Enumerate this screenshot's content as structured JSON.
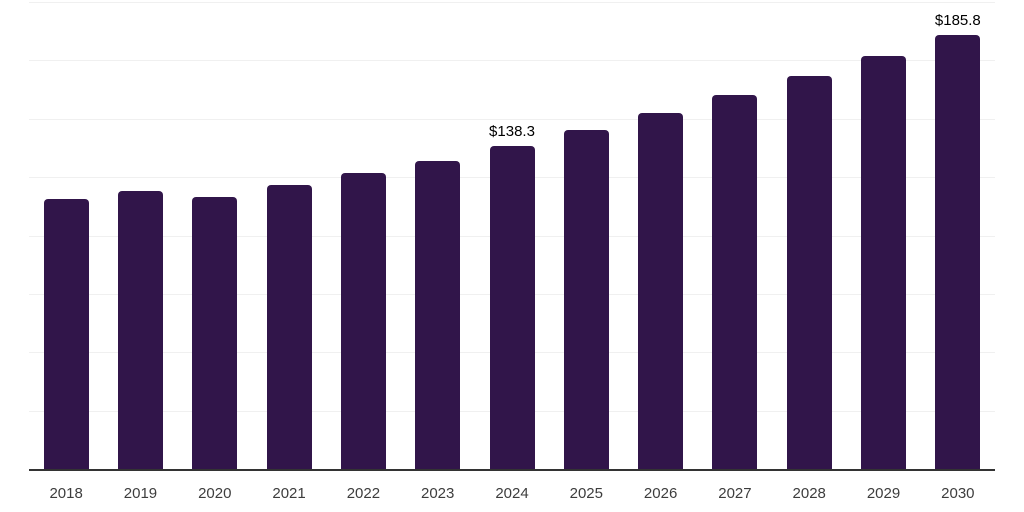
{
  "chart_data": {
    "type": "bar",
    "title": "",
    "xlabel": "",
    "ylabel": "",
    "categories": [
      "2018",
      "2019",
      "2020",
      "2021",
      "2022",
      "2023",
      "2024",
      "2025",
      "2026",
      "2027",
      "2028",
      "2029",
      "2030"
    ],
    "values": [
      115.8,
      119.0,
      116.4,
      121.8,
      126.6,
      132.0,
      138.3,
      145.3,
      152.6,
      160.3,
      168.4,
      176.9,
      185.8
    ],
    "data_labels": [
      {
        "category": "2024",
        "text": "$138.3"
      },
      {
        "category": "2030",
        "text": "$185.8"
      }
    ],
    "ylim": [
      0,
      200
    ],
    "gridline_step_value": 25,
    "grid": "horizontal",
    "y_axis_labels_visible": false,
    "legend": "none",
    "colors": {
      "bar": "#31154a",
      "gridline": "#f0f0f0",
      "axis_line": "#333333",
      "tick_label": "#3d3d3d",
      "data_label": "#000000",
      "background": "#ffffff"
    }
  }
}
